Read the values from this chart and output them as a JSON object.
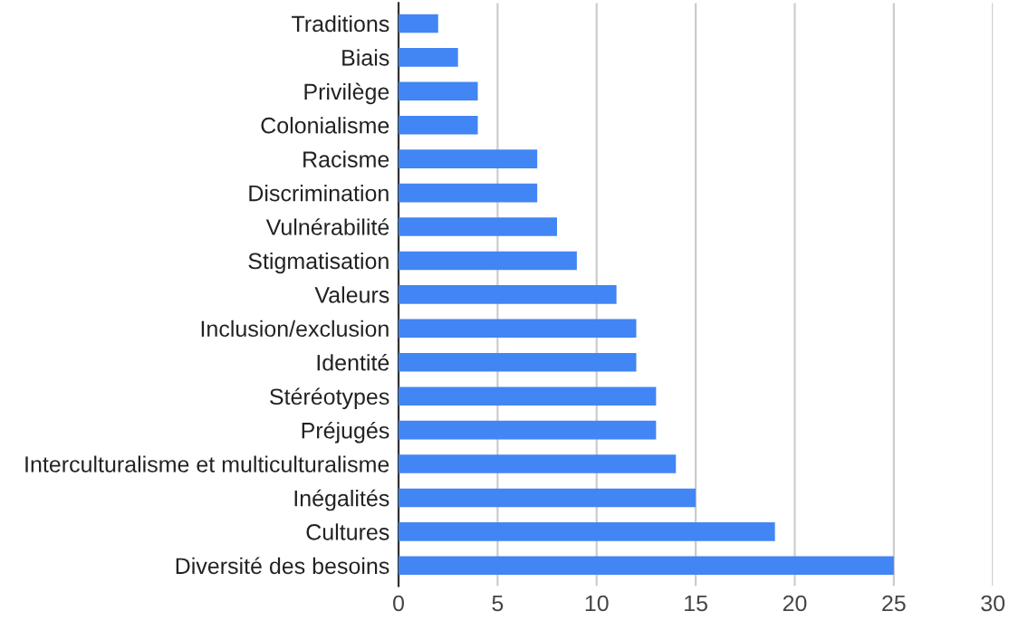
{
  "chart_data": {
    "type": "bar",
    "orientation": "horizontal",
    "categories": [
      "Traditions",
      "Biais",
      "Privilège",
      "Colonialisme",
      "Racisme",
      "Discrimination",
      "Vulnérabilité",
      "Stigmatisation",
      "Valeurs",
      "Inclusion/exclusion",
      "Identité",
      "Stéréotypes",
      "Préjugés",
      "Interculturalisme et multiculturalisme",
      "Inégalités",
      "Cultures",
      "Diversité des besoins"
    ],
    "values": [
      2,
      3,
      4,
      4,
      7,
      7,
      8,
      9,
      11,
      12,
      12,
      13,
      13,
      14,
      15,
      19,
      25
    ],
    "color": "#4285f4",
    "xlim": [
      0,
      30
    ],
    "xticks": [
      0,
      5,
      10,
      15,
      20,
      25,
      30
    ],
    "grid": "x",
    "legend": false
  }
}
